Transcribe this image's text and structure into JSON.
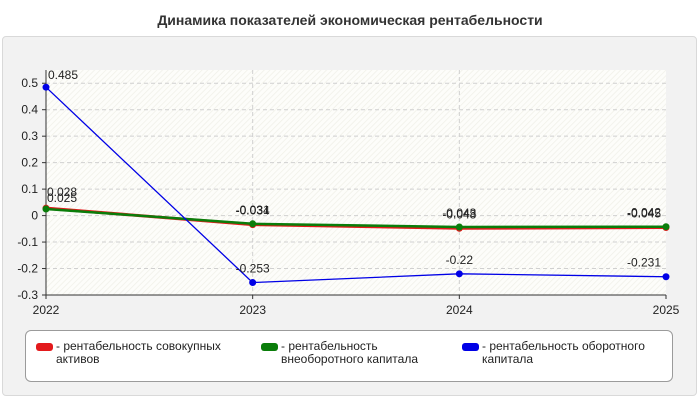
{
  "chart_data": {
    "type": "line",
    "title": "Динамика показателей экономическая рентабельности",
    "x": [
      "2022",
      "2023",
      "2024",
      "2025"
    ],
    "ylim": [
      -0.3,
      0.55
    ],
    "yticks": [
      "0.5",
      "0.4",
      "0.3",
      "0.2",
      "0.1",
      "0",
      "-0.1",
      "-0.2",
      "-0.3"
    ],
    "grid": true,
    "legend_position": "bottom",
    "series": [
      {
        "name": "- рентабельность совокупных активов",
        "color": "#e31a1c",
        "values": [
          0.028,
          -0.034,
          -0.048,
          -0.045
        ],
        "labels": [
          "0.028",
          "-0.034",
          "-0.048",
          "-0.045"
        ]
      },
      {
        "name": "- рентабельность внеоборотного капитала",
        "color": "#0a7d0a",
        "values": [
          0.025,
          -0.031,
          -0.043,
          -0.042
        ],
        "labels": [
          "0.025",
          "-0.031",
          "-0.043",
          "-0.042"
        ]
      },
      {
        "name": "- рентабельность оборотного капитала",
        "color": "#0000e6",
        "values": [
          0.485,
          -0.253,
          -0.22,
          -0.231
        ],
        "labels": [
          "0.485",
          "-0.253",
          "-0.22",
          "-0.231"
        ]
      }
    ]
  }
}
